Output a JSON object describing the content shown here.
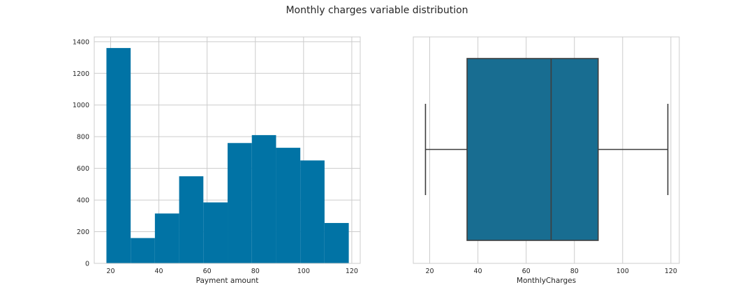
{
  "figure": {
    "title": "Monthly charges variable distribution"
  },
  "colors": {
    "hist": "#0173a5",
    "box": "#186d91",
    "box_line": "#3d3d3d"
  },
  "chart_data": [
    {
      "type": "bar",
      "subtype": "histogram",
      "xlabel": "Payment amount",
      "ylabel": "",
      "xlim": [
        13.2,
        123.5
      ],
      "ylim": [
        0,
        1430
      ],
      "xticks": [
        20,
        40,
        60,
        80,
        100,
        120
      ],
      "yticks": [
        0,
        200,
        400,
        600,
        800,
        1000,
        1200,
        1400
      ],
      "grid": true,
      "bins": [
        {
          "x0": 18.25,
          "x1": 28.3,
          "count": 1360
        },
        {
          "x0": 28.3,
          "x1": 38.35,
          "count": 160
        },
        {
          "x0": 38.35,
          "x1": 48.4,
          "count": 315
        },
        {
          "x0": 48.4,
          "x1": 58.45,
          "count": 550
        },
        {
          "x0": 58.45,
          "x1": 68.5,
          "count": 385
        },
        {
          "x0": 68.5,
          "x1": 78.55,
          "count": 760
        },
        {
          "x0": 78.55,
          "x1": 88.6,
          "count": 810
        },
        {
          "x0": 88.6,
          "x1": 98.65,
          "count": 730
        },
        {
          "x0": 98.65,
          "x1": 108.7,
          "count": 650
        },
        {
          "x0": 108.7,
          "x1": 118.75,
          "count": 255
        }
      ]
    },
    {
      "type": "box",
      "xlabel": "MonthlyCharges",
      "xlim": [
        13.2,
        123.5
      ],
      "xticks": [
        20,
        40,
        60,
        80,
        100,
        120
      ],
      "grid": true,
      "stats": {
        "min": 18.25,
        "q1": 35.5,
        "median": 70.35,
        "q3": 89.85,
        "max": 118.75
      }
    }
  ]
}
